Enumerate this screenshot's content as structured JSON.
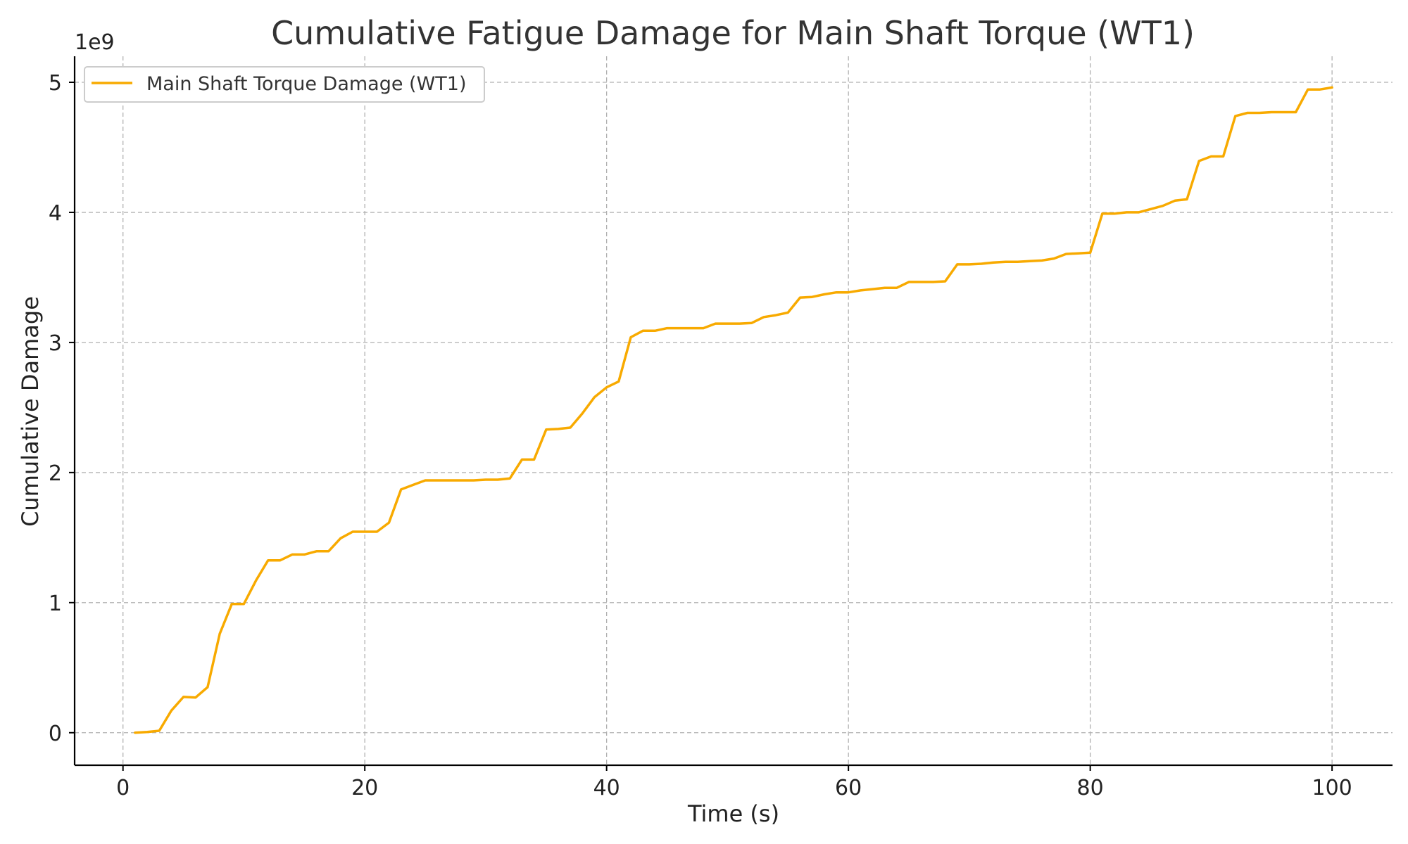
{
  "chart_data": {
    "type": "line",
    "title": "Cumulative Fatigue Damage for Main Shaft Torque (WT1)",
    "xlabel": "Time (s)",
    "ylabel": "Cumulative Damage",
    "y_offset_label": "1e9",
    "xlim": [
      -4,
      105
    ],
    "ylim": [
      -0.25,
      5.2
    ],
    "x_ticks": [
      0,
      20,
      40,
      60,
      80,
      100
    ],
    "y_ticks": [
      0,
      1,
      2,
      3,
      4,
      5
    ],
    "x_tick_labels": [
      "0",
      "20",
      "40",
      "60",
      "80",
      "100"
    ],
    "y_tick_labels": [
      "0",
      "1",
      "2",
      "3",
      "4",
      "5"
    ],
    "grid": true,
    "legend_position": "top-left",
    "series": [
      {
        "name": "Main Shaft Torque Damage (WT1)",
        "color": "#f8aa00",
        "x": [
          1,
          2,
          3,
          4,
          5,
          6,
          7,
          8,
          9,
          10,
          11,
          12,
          13,
          14,
          15,
          16,
          17,
          18,
          19,
          20,
          21,
          22,
          23,
          24,
          25,
          26,
          27,
          28,
          29,
          30,
          31,
          32,
          33,
          34,
          35,
          36,
          37,
          38,
          39,
          40,
          41,
          42,
          43,
          44,
          45,
          46,
          47,
          48,
          49,
          50,
          51,
          52,
          53,
          54,
          55,
          56,
          57,
          58,
          59,
          60,
          61,
          62,
          63,
          64,
          65,
          66,
          67,
          68,
          69,
          70,
          71,
          72,
          73,
          74,
          75,
          76,
          77,
          78,
          79,
          80,
          81,
          82,
          83,
          84,
          85,
          86,
          87,
          88,
          89,
          90,
          91,
          92,
          93,
          94,
          95,
          96,
          97,
          98,
          99,
          100
        ],
        "y": [
          0.0,
          0.005,
          0.015,
          0.17,
          0.275,
          0.27,
          0.35,
          0.76,
          0.99,
          0.99,
          1.17,
          1.325,
          1.325,
          1.37,
          1.37,
          1.395,
          1.395,
          1.495,
          1.545,
          1.545,
          1.545,
          1.615,
          1.87,
          1.905,
          1.94,
          1.94,
          1.94,
          1.94,
          1.94,
          1.945,
          1.945,
          1.955,
          2.1,
          2.1,
          2.33,
          2.335,
          2.345,
          2.455,
          2.58,
          2.655,
          2.7,
          3.04,
          3.09,
          3.09,
          3.11,
          3.11,
          3.11,
          3.11,
          3.145,
          3.145,
          3.145,
          3.15,
          3.195,
          3.21,
          3.23,
          3.345,
          3.35,
          3.37,
          3.385,
          3.385,
          3.4,
          3.41,
          3.42,
          3.42,
          3.465,
          3.465,
          3.465,
          3.47,
          3.6,
          3.6,
          3.605,
          3.615,
          3.62,
          3.62,
          3.625,
          3.63,
          3.645,
          3.68,
          3.685,
          3.69,
          3.99,
          3.99,
          4.0,
          4.0,
          4.025,
          4.05,
          4.09,
          4.1,
          4.395,
          4.43,
          4.43,
          4.74,
          4.765,
          4.765,
          4.77,
          4.77,
          4.77,
          4.945,
          4.945,
          4.96
        ]
      }
    ]
  }
}
